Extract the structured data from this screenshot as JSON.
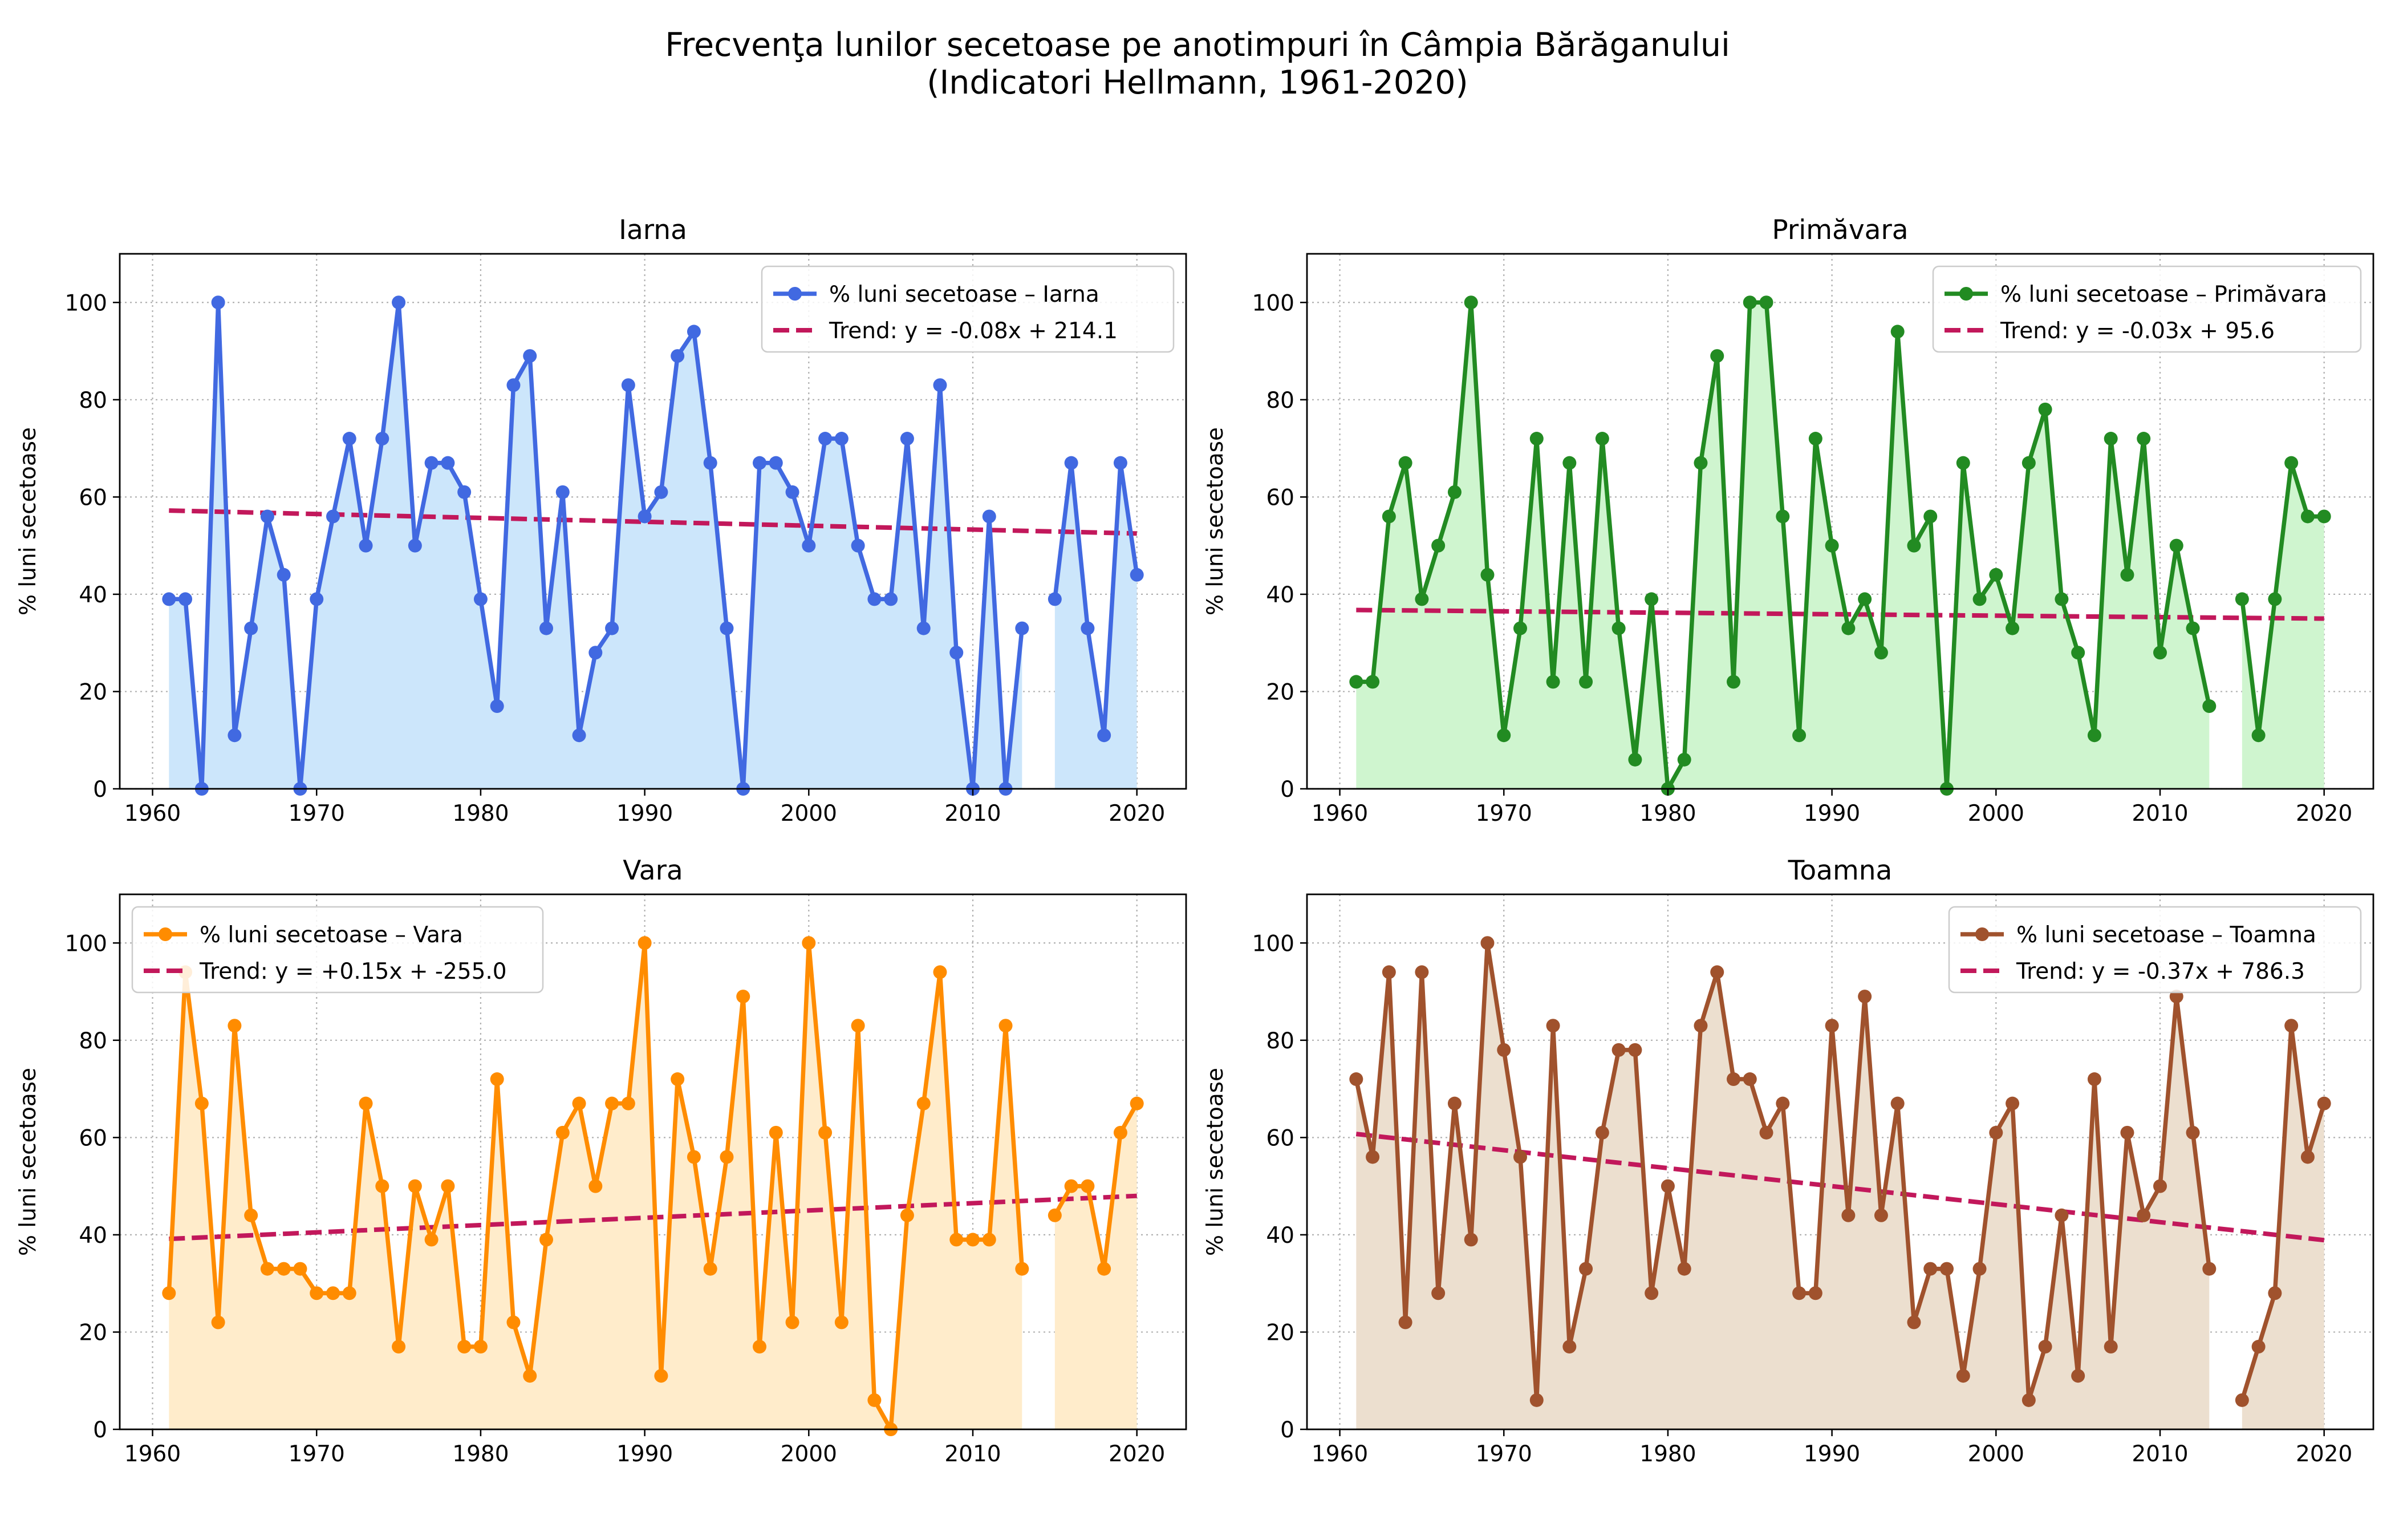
{
  "figure": {
    "title_line1": "Frecvenţa lunilor secetoase pe anotimpuri în Câmpia Bărăganului",
    "title_line2": "(Indicatori Hellmann, 1961-2020)"
  },
  "chart_data": [
    {
      "type": "line",
      "title": "Iarna",
      "ylabel": "% luni secetoase",
      "xlabel": "",
      "xlim": [
        1958,
        2023
      ],
      "ylim": [
        0,
        110
      ],
      "xticks": [
        1960,
        1970,
        1980,
        1990,
        2000,
        2010,
        2020
      ],
      "yticks": [
        0,
        20,
        40,
        60,
        80,
        100
      ],
      "grid": true,
      "legend_position": "top-right",
      "color": "#4169e1",
      "fill_color": "#cce6fb",
      "trend_color": "#c2185b",
      "series": [
        {
          "name": "% luni secetoase – Iarna",
          "x": [
            1961,
            1962,
            1963,
            1964,
            1965,
            1966,
            1967,
            1968,
            1969,
            1970,
            1971,
            1972,
            1973,
            1974,
            1975,
            1976,
            1977,
            1978,
            1979,
            1980,
            1981,
            1982,
            1983,
            1984,
            1985,
            1986,
            1987,
            1988,
            1989,
            1990,
            1991,
            1992,
            1993,
            1994,
            1995,
            1996,
            1997,
            1998,
            1999,
            2000,
            2001,
            2002,
            2003,
            2004,
            2005,
            2006,
            2007,
            2008,
            2009,
            2010,
            2011,
            2012,
            2013,
            2014,
            2015,
            2016,
            2017,
            2018,
            2019,
            2020
          ],
          "y": [
            39,
            39,
            0,
            100,
            11,
            33,
            56,
            44,
            0,
            39,
            56,
            72,
            50,
            72,
            100,
            50,
            67,
            67,
            61,
            39,
            17,
            83,
            89,
            33,
            61,
            11,
            28,
            33,
            83,
            56,
            61,
            89,
            94,
            67,
            33,
            0,
            67,
            67,
            61,
            50,
            72,
            72,
            50,
            39,
            39,
            72,
            33,
            83,
            28,
            0,
            56,
            0,
            33,
            null,
            39,
            67,
            33,
            11,
            67,
            44
          ]
        },
        {
          "name": "Trend: y = -0.08x + 214.1",
          "slope": -0.08,
          "intercept": 214.1
        }
      ]
    },
    {
      "type": "line",
      "title": "Primăvara",
      "ylabel": "% luni secetoase",
      "xlabel": "",
      "xlim": [
        1958,
        2023
      ],
      "ylim": [
        0,
        110
      ],
      "xticks": [
        1960,
        1970,
        1980,
        1990,
        2000,
        2010,
        2020
      ],
      "yticks": [
        0,
        20,
        40,
        60,
        80,
        100
      ],
      "grid": true,
      "legend_position": "top-right",
      "color": "#228b22",
      "fill_color": "#cff5cf",
      "trend_color": "#c2185b",
      "series": [
        {
          "name": "% luni secetoase – Primăvara",
          "x": [
            1961,
            1962,
            1963,
            1964,
            1965,
            1966,
            1967,
            1968,
            1969,
            1970,
            1971,
            1972,
            1973,
            1974,
            1975,
            1976,
            1977,
            1978,
            1979,
            1980,
            1981,
            1982,
            1983,
            1984,
            1985,
            1986,
            1987,
            1988,
            1989,
            1990,
            1991,
            1992,
            1993,
            1994,
            1995,
            1996,
            1997,
            1998,
            1999,
            2000,
            2001,
            2002,
            2003,
            2004,
            2005,
            2006,
            2007,
            2008,
            2009,
            2010,
            2011,
            2012,
            2013,
            2014,
            2015,
            2016,
            2017,
            2018,
            2019,
            2020
          ],
          "y": [
            22,
            22,
            56,
            67,
            39,
            50,
            61,
            100,
            44,
            11,
            33,
            72,
            22,
            67,
            22,
            72,
            33,
            6,
            39,
            0,
            6,
            67,
            89,
            22,
            100,
            100,
            56,
            11,
            72,
            50,
            33,
            39,
            28,
            94,
            50,
            56,
            0,
            67,
            39,
            44,
            33,
            67,
            78,
            39,
            28,
            11,
            72,
            44,
            72,
            28,
            50,
            33,
            17,
            null,
            39,
            11,
            39,
            67,
            56,
            56
          ]
        },
        {
          "name": "Trend: y = -0.03x + 95.6",
          "slope": -0.03,
          "intercept": 95.6
        }
      ]
    },
    {
      "type": "line",
      "title": "Vara",
      "ylabel": "% luni secetoase",
      "xlabel": "",
      "xlim": [
        1958,
        2023
      ],
      "ylim": [
        0,
        110
      ],
      "xticks": [
        1960,
        1970,
        1980,
        1990,
        2000,
        2010,
        2020
      ],
      "yticks": [
        0,
        20,
        40,
        60,
        80,
        100
      ],
      "grid": true,
      "legend_position": "top-left",
      "color": "#ff8c00",
      "fill_color": "#ffeccb",
      "trend_color": "#c2185b",
      "series": [
        {
          "name": "% luni secetoase – Vara",
          "x": [
            1961,
            1962,
            1963,
            1964,
            1965,
            1966,
            1967,
            1968,
            1969,
            1970,
            1971,
            1972,
            1973,
            1974,
            1975,
            1976,
            1977,
            1978,
            1979,
            1980,
            1981,
            1982,
            1983,
            1984,
            1985,
            1986,
            1987,
            1988,
            1989,
            1990,
            1991,
            1992,
            1993,
            1994,
            1995,
            1996,
            1997,
            1998,
            1999,
            2000,
            2001,
            2002,
            2003,
            2004,
            2005,
            2006,
            2007,
            2008,
            2009,
            2010,
            2011,
            2012,
            2013,
            2014,
            2015,
            2016,
            2017,
            2018,
            2019,
            2020
          ],
          "y": [
            28,
            94,
            67,
            22,
            83,
            44,
            33,
            33,
            33,
            28,
            28,
            28,
            67,
            50,
            17,
            50,
            39,
            50,
            17,
            17,
            72,
            22,
            11,
            39,
            61,
            67,
            50,
            67,
            67,
            100,
            11,
            72,
            56,
            33,
            56,
            89,
            17,
            61,
            22,
            100,
            61,
            22,
            83,
            6,
            0,
            44,
            67,
            94,
            39,
            39,
            39,
            83,
            33,
            null,
            44,
            50,
            50,
            33,
            61,
            67
          ]
        },
        {
          "name": "Trend: y = +0.15x + -255.0",
          "slope": 0.15,
          "intercept": -255.0
        }
      ]
    },
    {
      "type": "line",
      "title": "Toamna",
      "ylabel": "% luni secetoase",
      "xlabel": "",
      "xlim": [
        1958,
        2023
      ],
      "ylim": [
        0,
        110
      ],
      "xticks": [
        1960,
        1970,
        1980,
        1990,
        2000,
        2010,
        2020
      ],
      "yticks": [
        0,
        20,
        40,
        60,
        80,
        100
      ],
      "grid": true,
      "legend_position": "top-right",
      "color": "#a0522d",
      "fill_color": "#ecdfcf",
      "trend_color": "#c2185b",
      "series": [
        {
          "name": "% luni secetoase – Toamna",
          "x": [
            1961,
            1962,
            1963,
            1964,
            1965,
            1966,
            1967,
            1968,
            1969,
            1970,
            1971,
            1972,
            1973,
            1974,
            1975,
            1976,
            1977,
            1978,
            1979,
            1980,
            1981,
            1982,
            1983,
            1984,
            1985,
            1986,
            1987,
            1988,
            1989,
            1990,
            1991,
            1992,
            1993,
            1994,
            1995,
            1996,
            1997,
            1998,
            1999,
            2000,
            2001,
            2002,
            2003,
            2004,
            2005,
            2006,
            2007,
            2008,
            2009,
            2010,
            2011,
            2012,
            2013,
            2014,
            2015,
            2016,
            2017,
            2018,
            2019,
            2020
          ],
          "y": [
            72,
            56,
            94,
            22,
            94,
            28,
            67,
            39,
            100,
            78,
            56,
            6,
            83,
            17,
            33,
            61,
            78,
            78,
            28,
            50,
            33,
            83,
            94,
            72,
            72,
            61,
            67,
            28,
            28,
            83,
            44,
            89,
            44,
            67,
            22,
            33,
            33,
            11,
            33,
            61,
            67,
            6,
            17,
            44,
            11,
            72,
            17,
            61,
            44,
            50,
            89,
            61,
            33,
            null,
            6,
            17,
            28,
            83,
            56,
            67
          ]
        },
        {
          "name": "Trend: y = -0.37x + 786.3",
          "slope": -0.37,
          "intercept": 786.3
        }
      ]
    }
  ]
}
